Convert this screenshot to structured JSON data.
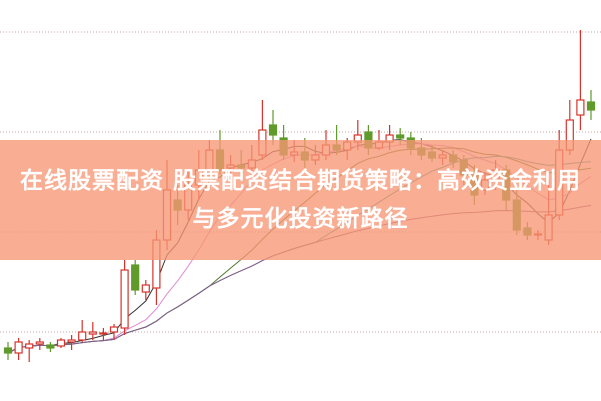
{
  "title": "在线股票配资 股票配资结合期货策略：高效资金利用与多元化投资新路径",
  "colors": {
    "up": "#d6322b",
    "down": "#5f9a2a",
    "banner": "#f7966f",
    "grid": "#c9a0a0"
  },
  "chart_data": {
    "type": "candlestick",
    "title": "",
    "grid": true,
    "candles": [
      [
        52,
        47,
        58,
        40
      ],
      [
        47,
        58,
        62,
        40
      ],
      [
        52,
        56,
        60,
        38
      ],
      [
        56,
        58,
        62,
        50
      ],
      [
        55,
        52,
        58,
        48
      ],
      [
        54,
        60,
        62,
        52
      ],
      [
        58,
        60,
        65,
        50
      ],
      [
        60,
        68,
        80,
        58
      ],
      [
        66,
        68,
        78,
        60
      ],
      [
        66,
        67,
        72,
        60
      ],
      [
        68,
        73,
        76,
        60
      ],
      [
        72,
        130,
        140,
        65
      ],
      [
        135,
        110,
        140,
        105
      ],
      [
        108,
        115,
        120,
        100
      ],
      [
        112,
        160,
        170,
        95
      ],
      [
        160,
        210,
        240,
        150
      ],
      [
        200,
        190,
        215,
        175
      ],
      [
        190,
        215,
        230,
        180
      ],
      [
        215,
        230,
        250,
        200
      ],
      [
        228,
        250,
        260,
        220
      ],
      [
        250,
        230,
        270,
        225
      ],
      [
        232,
        235,
        245,
        220
      ],
      [
        235,
        232,
        250,
        225
      ],
      [
        232,
        240,
        255,
        225
      ],
      [
        245,
        270,
        300,
        240
      ],
      [
        275,
        265,
        290,
        255
      ],
      [
        262,
        245,
        275,
        240
      ],
      [
        245,
        248,
        260,
        238
      ],
      [
        248,
        240,
        262,
        230
      ],
      [
        240,
        245,
        255,
        235
      ],
      [
        245,
        255,
        270,
        240
      ],
      [
        255,
        250,
        275,
        245
      ],
      [
        250,
        258,
        262,
        240
      ],
      [
        258,
        265,
        280,
        250
      ],
      [
        268,
        252,
        275,
        245
      ],
      [
        252,
        258,
        270,
        250
      ],
      [
        258,
        265,
        275,
        250
      ],
      [
        265,
        262,
        272,
        255
      ],
      [
        262,
        252,
        268,
        245
      ],
      [
        252,
        245,
        262,
        240
      ],
      [
        248,
        242,
        255,
        238
      ],
      [
        242,
        245,
        250,
        235
      ],
      [
        245,
        238,
        250,
        232
      ],
      [
        240,
        225,
        245,
        215
      ],
      [
        225,
        205,
        235,
        195
      ],
      [
        210,
        220,
        228,
        205
      ],
      [
        220,
        230,
        240,
        210
      ],
      [
        230,
        200,
        235,
        190
      ],
      [
        200,
        170,
        210,
        165
      ],
      [
        172,
        165,
        178,
        160
      ],
      [
        165,
        166,
        170,
        160
      ],
      [
        160,
        185,
        220,
        155
      ],
      [
        185,
        250,
        270,
        180
      ],
      [
        250,
        280,
        300,
        245
      ],
      [
        285,
        300,
        370,
        270
      ],
      [
        298,
        290,
        310,
        280
      ]
    ],
    "moving_averages": [
      {
        "period": 5,
        "color": "#333333"
      },
      {
        "period": 10,
        "color": "#e08ad8"
      },
      {
        "period": 20,
        "color": "#4d7a2a"
      },
      {
        "period": 30,
        "color": "#3a9a9a"
      },
      {
        "period": 60,
        "color": "#8a5a8a"
      }
    ],
    "gridlines": [
      368,
      268,
      168,
      68
    ]
  }
}
